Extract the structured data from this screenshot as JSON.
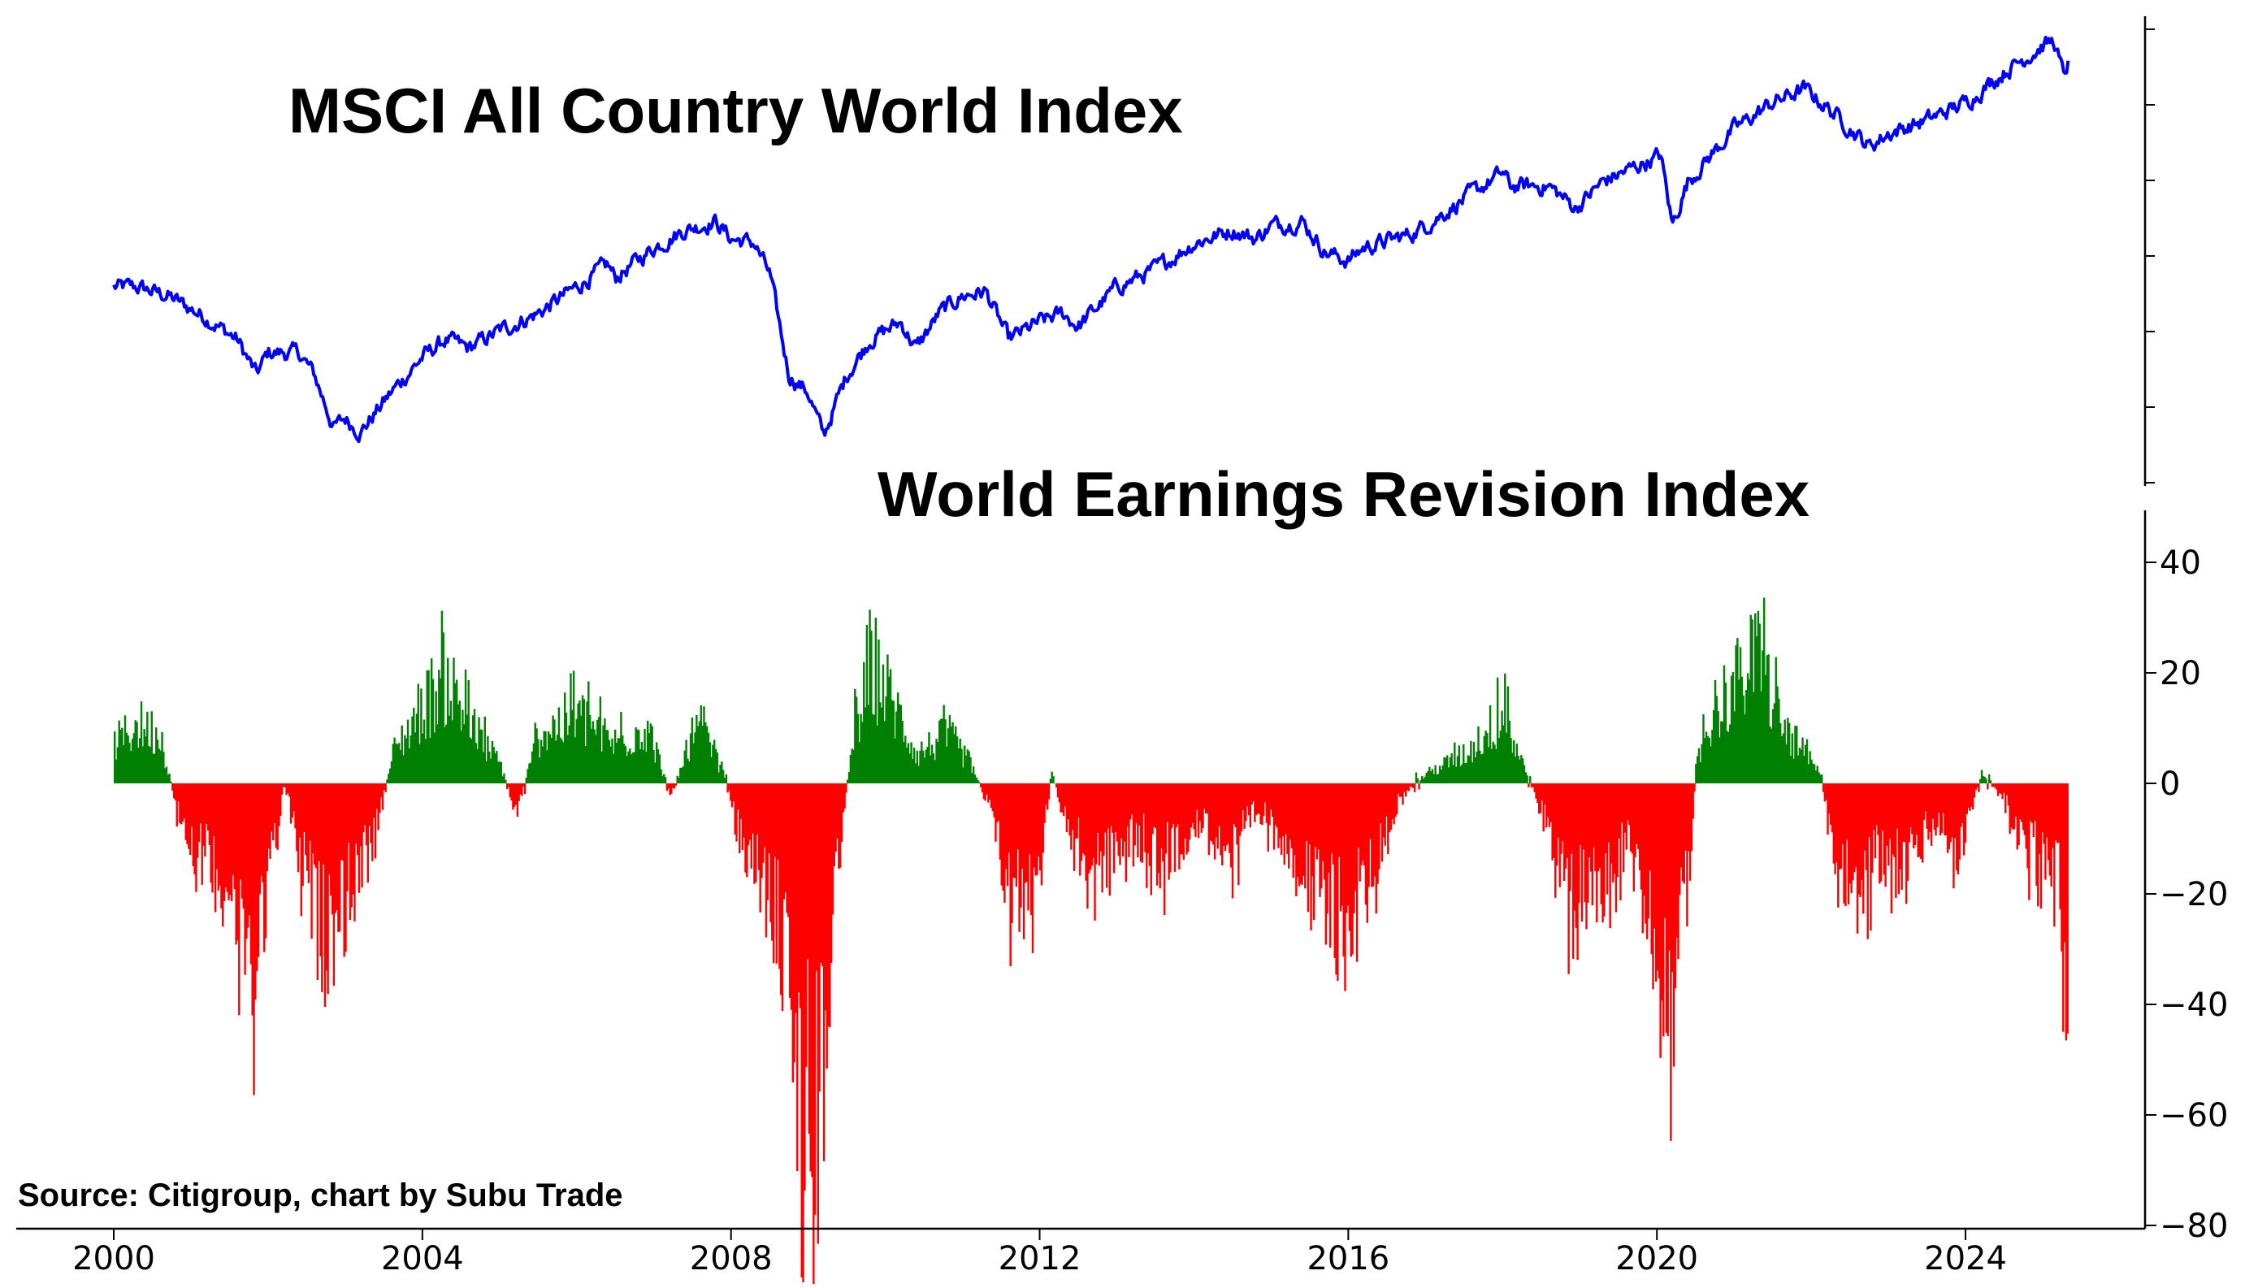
{
  "source_note": "Source: Citigroup, chart by Subu Trade",
  "chart_data": [
    {
      "type": "line",
      "title": "MSCI All Country World Index",
      "color": "#0000ff",
      "yaxis_tick_labels": "none",
      "x_start": 2000.0,
      "x_end": 2025.33,
      "ylim": [
        0,
        1
      ],
      "anchors": [
        [
          2000.0,
          0.42
        ],
        [
          2000.3,
          0.42
        ],
        [
          2000.7,
          0.4
        ],
        [
          2001.2,
          0.35
        ],
        [
          2001.6,
          0.3
        ],
        [
          2001.85,
          0.22
        ],
        [
          2002.0,
          0.27
        ],
        [
          2002.4,
          0.27
        ],
        [
          2002.6,
          0.22
        ],
        [
          2002.85,
          0.1
        ],
        [
          2003.0,
          0.12
        ],
        [
          2003.2,
          0.09
        ],
        [
          2003.6,
          0.18
        ],
        [
          2004.0,
          0.26
        ],
        [
          2004.3,
          0.3
        ],
        [
          2004.6,
          0.28
        ],
        [
          2005.0,
          0.32
        ],
        [
          2005.5,
          0.36
        ],
        [
          2006.0,
          0.42
        ],
        [
          2006.4,
          0.47
        ],
        [
          2006.5,
          0.44
        ],
        [
          2007.0,
          0.51
        ],
        [
          2007.4,
          0.55
        ],
        [
          2007.8,
          0.57
        ],
        [
          2008.0,
          0.53
        ],
        [
          2008.3,
          0.52
        ],
        [
          2008.5,
          0.45
        ],
        [
          2008.75,
          0.22
        ],
        [
          2009.0,
          0.18
        ],
        [
          2009.2,
          0.08
        ],
        [
          2009.5,
          0.22
        ],
        [
          2009.8,
          0.3
        ],
        [
          2010.2,
          0.34
        ],
        [
          2010.4,
          0.28
        ],
        [
          2010.7,
          0.36
        ],
        [
          2011.0,
          0.4
        ],
        [
          2011.3,
          0.41
        ],
        [
          2011.6,
          0.3
        ],
        [
          2011.8,
          0.32
        ],
        [
          2012.0,
          0.34
        ],
        [
          2012.3,
          0.36
        ],
        [
          2012.5,
          0.33
        ],
        [
          2013.0,
          0.42
        ],
        [
          2013.5,
          0.46
        ],
        [
          2014.0,
          0.52
        ],
        [
          2014.5,
          0.55
        ],
        [
          2014.8,
          0.53
        ],
        [
          2015.0,
          0.56
        ],
        [
          2015.4,
          0.57
        ],
        [
          2015.7,
          0.5
        ],
        [
          2016.0,
          0.48
        ],
        [
          2016.2,
          0.51
        ],
        [
          2016.8,
          0.54
        ],
        [
          2017.0,
          0.56
        ],
        [
          2017.5,
          0.62
        ],
        [
          2018.0,
          0.68
        ],
        [
          2018.1,
          0.65
        ],
        [
          2018.6,
          0.65
        ],
        [
          2018.95,
          0.6
        ],
        [
          2019.3,
          0.66
        ],
        [
          2019.8,
          0.7
        ],
        [
          2020.05,
          0.72
        ],
        [
          2020.2,
          0.56
        ],
        [
          2020.4,
          0.66
        ],
        [
          2020.7,
          0.72
        ],
        [
          2021.0,
          0.78
        ],
        [
          2021.5,
          0.84
        ],
        [
          2021.9,
          0.87
        ],
        [
          2022.0,
          0.86
        ],
        [
          2022.4,
          0.8
        ],
        [
          2022.75,
          0.74
        ],
        [
          2023.0,
          0.77
        ],
        [
          2023.5,
          0.8
        ],
        [
          2024.0,
          0.84
        ],
        [
          2024.5,
          0.91
        ],
        [
          2025.0,
          0.97
        ],
        [
          2025.15,
          0.98
        ],
        [
          2025.27,
          0.9
        ],
        [
          2025.33,
          0.93
        ]
      ]
    },
    {
      "type": "bar",
      "title": "World Earnings Revision Index",
      "positive_color": "#008000",
      "negative_color": "#ff0000",
      "ylim": [
        -80,
        48
      ],
      "yticks": [
        40,
        20,
        0,
        -20,
        -40,
        -60,
        -80
      ],
      "ytick_labels": [
        "40",
        "20",
        "0",
        "−20",
        "−40",
        "−60",
        "−80"
      ],
      "xticks": [
        2000,
        2004,
        2008,
        2012,
        2016,
        2020,
        2024
      ],
      "xtick_labels": [
        "2000",
        "2004",
        "2008",
        "2012",
        "2016",
        "2020",
        "2024"
      ],
      "x_start": 2000.0,
      "x_end": 2025.33,
      "envelope": [
        [
          2000.0,
          8
        ],
        [
          2000.3,
          12
        ],
        [
          2000.6,
          10
        ],
        [
          2000.8,
          -5
        ],
        [
          2001.0,
          -12
        ],
        [
          2001.5,
          -22
        ],
        [
          2001.8,
          -38
        ],
        [
          2002.0,
          -18
        ],
        [
          2002.2,
          0
        ],
        [
          2002.4,
          -15
        ],
        [
          2002.7,
          -32
        ],
        [
          2003.0,
          -24
        ],
        [
          2003.4,
          -10
        ],
        [
          2003.6,
          6
        ],
        [
          2004.0,
          16
        ],
        [
          2004.3,
          22
        ],
        [
          2004.6,
          12
        ],
        [
          2005.0,
          4
        ],
        [
          2005.2,
          -6
        ],
        [
          2005.5,
          10
        ],
        [
          2006.0,
          14
        ],
        [
          2006.5,
          8
        ],
        [
          2006.9,
          12
        ],
        [
          2007.2,
          -2
        ],
        [
          2007.6,
          12
        ],
        [
          2007.9,
          2
        ],
        [
          2008.1,
          -12
        ],
        [
          2008.4,
          -20
        ],
        [
          2008.7,
          -35
        ],
        [
          2008.85,
          -58
        ],
        [
          2009.05,
          -64
        ],
        [
          2009.25,
          -38
        ],
        [
          2009.45,
          -5
        ],
        [
          2009.6,
          12
        ],
        [
          2009.85,
          24
        ],
        [
          2010.1,
          16
        ],
        [
          2010.4,
          6
        ],
        [
          2010.8,
          10
        ],
        [
          2011.1,
          4
        ],
        [
          2011.35,
          -6
        ],
        [
          2011.6,
          -22
        ],
        [
          2011.9,
          -24
        ],
        [
          2012.15,
          2
        ],
        [
          2012.4,
          -12
        ],
        [
          2012.8,
          -18
        ],
        [
          2013.2,
          -10
        ],
        [
          2013.6,
          -16
        ],
        [
          2014.0,
          -8
        ],
        [
          2014.5,
          -14
        ],
        [
          2014.8,
          -6
        ],
        [
          2015.2,
          -12
        ],
        [
          2015.5,
          -22
        ],
        [
          2015.8,
          -28
        ],
        [
          2016.0,
          -30
        ],
        [
          2016.3,
          -18
        ],
        [
          2016.6,
          -4
        ],
        [
          2017.0,
          2
        ],
        [
          2017.5,
          6
        ],
        [
          2018.0,
          14
        ],
        [
          2018.3,
          2
        ],
        [
          2018.6,
          -10
        ],
        [
          2018.9,
          -26
        ],
        [
          2019.2,
          -22
        ],
        [
          2019.6,
          -12
        ],
        [
          2019.9,
          -26
        ],
        [
          2020.15,
          -52
        ],
        [
          2020.35,
          -28
        ],
        [
          2020.5,
          4
        ],
        [
          2020.75,
          16
        ],
        [
          2021.0,
          20
        ],
        [
          2021.3,
          26
        ],
        [
          2021.6,
          12
        ],
        [
          2021.9,
          6
        ],
        [
          2022.1,
          2
        ],
        [
          2022.3,
          -14
        ],
        [
          2022.6,
          -22
        ],
        [
          2022.9,
          -14
        ],
        [
          2023.2,
          -18
        ],
        [
          2023.6,
          -8
        ],
        [
          2023.9,
          -14
        ],
        [
          2024.2,
          2
        ],
        [
          2024.5,
          -4
        ],
        [
          2024.8,
          -14
        ],
        [
          2025.1,
          -16
        ],
        [
          2025.22,
          -20
        ],
        [
          2025.3,
          -44
        ],
        [
          2025.33,
          -50
        ]
      ]
    }
  ]
}
